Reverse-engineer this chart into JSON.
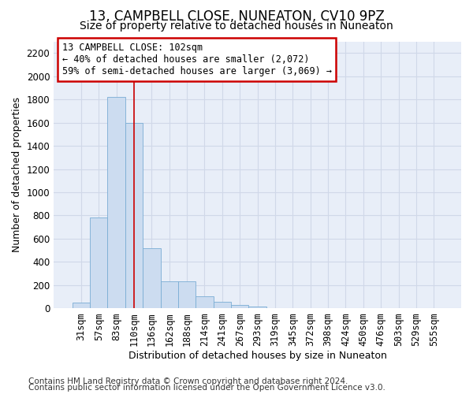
{
  "title": "13, CAMPBELL CLOSE, NUNEATON, CV10 9PZ",
  "subtitle": "Size of property relative to detached houses in Nuneaton",
  "xlabel": "Distribution of detached houses by size in Nuneaton",
  "ylabel": "Number of detached properties",
  "footer_line1": "Contains HM Land Registry data © Crown copyright and database right 2024.",
  "footer_line2": "Contains public sector information licensed under the Open Government Licence v3.0.",
  "bin_labels": [
    "31sqm",
    "57sqm",
    "83sqm",
    "110sqm",
    "136sqm",
    "162sqm",
    "188sqm",
    "214sqm",
    "241sqm",
    "267sqm",
    "293sqm",
    "319sqm",
    "345sqm",
    "372sqm",
    "398sqm",
    "424sqm",
    "450sqm",
    "476sqm",
    "503sqm",
    "529sqm",
    "555sqm"
  ],
  "bar_heights": [
    50,
    780,
    1820,
    1600,
    520,
    230,
    230,
    105,
    55,
    30,
    18,
    0,
    0,
    0,
    0,
    0,
    0,
    0,
    0,
    0,
    0
  ],
  "bar_color": "#ccdcf0",
  "bar_edge_color": "#7aadd4",
  "grid_color": "#d0d8e8",
  "background_color": "#e8eef8",
  "red_line_x": 3.0,
  "annotation_text": "13 CAMPBELL CLOSE: 102sqm\n← 40% of detached houses are smaller (2,072)\n59% of semi-detached houses are larger (3,069) →",
  "annotation_box_color": "#ffffff",
  "annotation_box_edge_color": "#cc0000",
  "ylim": [
    0,
    2300
  ],
  "yticks": [
    0,
    200,
    400,
    600,
    800,
    1000,
    1200,
    1400,
    1600,
    1800,
    2000,
    2200
  ],
  "title_fontsize": 12,
  "subtitle_fontsize": 10,
  "axis_label_fontsize": 9,
  "tick_fontsize": 8.5,
  "annotation_fontsize": 8.5,
  "footer_fontsize": 7.5
}
